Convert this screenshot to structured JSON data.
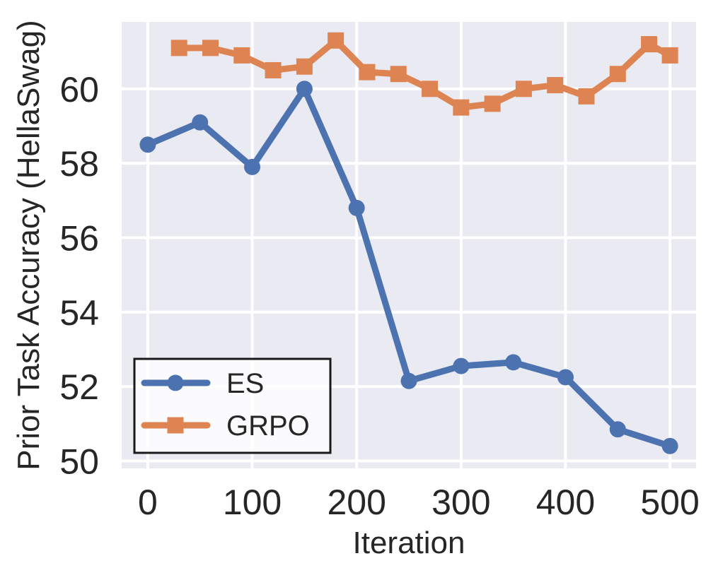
{
  "chart_data": {
    "type": "line",
    "title": "",
    "xlabel": "Iteration",
    "ylabel": "Prior Task Accuracy (HellaSwag)",
    "xlim": [
      -25,
      525
    ],
    "ylim": [
      49.8,
      61.8
    ],
    "x_ticks": [
      0,
      100,
      200,
      300,
      400,
      500
    ],
    "y_ticks": [
      50,
      52,
      54,
      56,
      58,
      60
    ],
    "grid": true,
    "plot_background": "#EAEAF2",
    "gridline_color": "#FFFFFF",
    "text_color": "#262626",
    "legend": {
      "position": "lower left",
      "border_color": "#1a1a1a",
      "labels": [
        "ES",
        "GRPO"
      ]
    },
    "series": [
      {
        "name": "ES",
        "color": "#4C72B0",
        "marker": "circle",
        "x": [
          0,
          50,
          100,
          150,
          200,
          250,
          300,
          350,
          400,
          450,
          500
        ],
        "y": [
          58.5,
          59.1,
          57.9,
          60.0,
          56.8,
          52.15,
          52.55,
          52.65,
          52.25,
          50.85,
          50.4
        ]
      },
      {
        "name": "GRPO",
        "color": "#DD8452",
        "marker": "square",
        "x": [
          30,
          60,
          90,
          120,
          150,
          180,
          210,
          240,
          270,
          300,
          330,
          360,
          390,
          420,
          450,
          480,
          500
        ],
        "y": [
          61.1,
          61.1,
          60.9,
          60.5,
          60.6,
          61.3,
          60.45,
          60.4,
          60.0,
          59.5,
          59.6,
          60.0,
          60.1,
          59.8,
          60.4,
          61.2,
          60.9
        ]
      }
    ]
  }
}
